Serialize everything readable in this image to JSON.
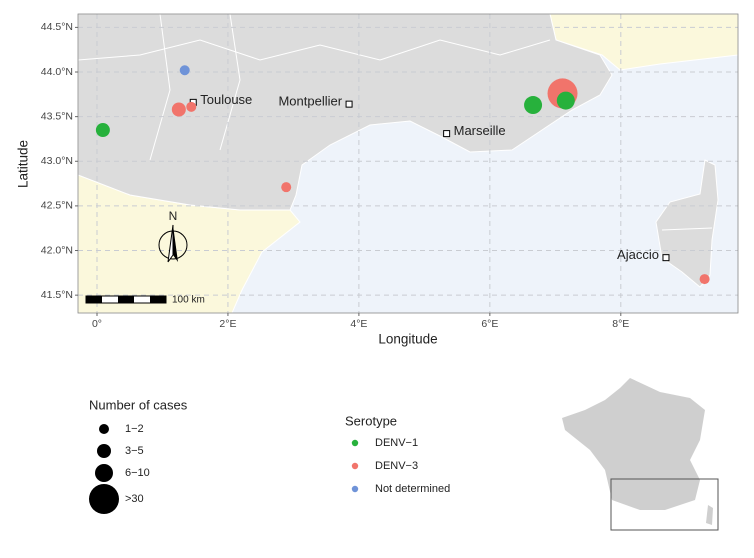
{
  "chart_data": {
    "type": "scatter",
    "x_label": "Longitude",
    "y_label": "Latitude",
    "xlim": [
      -0.29,
      9.79
    ],
    "ylim": [
      41.3,
      44.65
    ],
    "xticks": [
      {
        "value": 0,
        "label": "0°"
      },
      {
        "value": 2,
        "label": "2°E"
      },
      {
        "value": 4,
        "label": "4°E"
      },
      {
        "value": 6,
        "label": "6°E"
      },
      {
        "value": 8,
        "label": "8°E"
      }
    ],
    "yticks": [
      {
        "value": 41.5,
        "label": "41.5°N"
      },
      {
        "value": 42,
        "label": "42.0°N"
      },
      {
        "value": 42.5,
        "label": "42.5°N"
      },
      {
        "value": 43,
        "label": "43.0°N"
      },
      {
        "value": 43.5,
        "label": "43.5°N"
      },
      {
        "value": 44,
        "label": "44.0°N"
      },
      {
        "value": 44.5,
        "label": "44.5°N"
      }
    ],
    "grid": true,
    "series": [
      {
        "name": "DENV−1",
        "color": "#27b13c",
        "x": [
          0.09,
          6.66,
          7.16
        ],
        "y": [
          43.35,
          43.63,
          43.68
        ],
        "sizes": [
          "3−5",
          "6−10",
          "6−10"
        ]
      },
      {
        "name": "DENV−3",
        "color": "#f1746b",
        "x": [
          1.25,
          1.44,
          2.89,
          7.11,
          9.28
        ],
        "y": [
          43.58,
          43.61,
          42.71,
          43.76,
          41.68
        ],
        "sizes": [
          "3−5",
          "1−2",
          "1−2",
          ">30",
          "1−2"
        ]
      },
      {
        "name": "Not determined",
        "color": "#6f93d8",
        "x": [
          1.34
        ],
        "y": [
          44.02
        ],
        "sizes": [
          "1−2"
        ]
      }
    ],
    "cities": [
      {
        "name": "Toulouse",
        "x": 1.47,
        "y": 43.66
      },
      {
        "name": "Montpellier",
        "x": 3.85,
        "y": 43.64
      },
      {
        "name": "Marseille",
        "x": 5.34,
        "y": 43.31
      },
      {
        "name": "Ajaccio",
        "x": 8.69,
        "y": 41.92
      }
    ],
    "north_label": "N",
    "scale_label": "100 km",
    "size_legend": {
      "title": "Number of cases",
      "labels": [
        "1−2",
        "3−5",
        "6−10",
        ">30"
      ]
    },
    "color_legend_title": "Serotype"
  }
}
